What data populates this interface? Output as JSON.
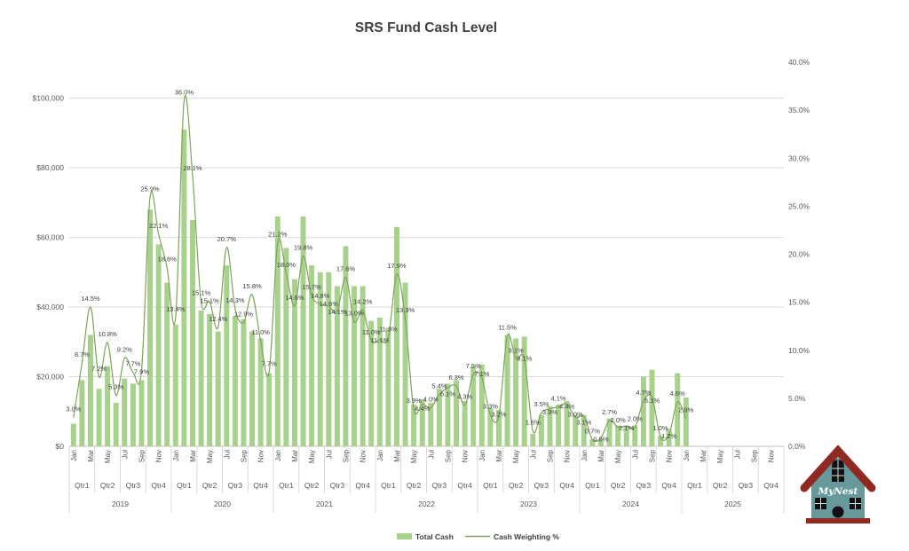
{
  "title": "SRS Fund Cash Level",
  "legend": {
    "total_cash": "Total Cash",
    "cash_weighting": "Cash Weighting %"
  },
  "colors": {
    "bar": "#a9d18e",
    "line": "#7fa35c",
    "grid": "#d9d9d9",
    "axis_line": "#bfbfbf",
    "axis_text": "#595959",
    "label_text": "#404040",
    "title_text": "#404040"
  },
  "logo": {
    "text": "MyNest",
    "body_color": "#67989c",
    "roof_color": "#8e2a22",
    "window_color": "#111111"
  },
  "chart_data": {
    "type": "combo-bar-line",
    "title": "SRS Fund Cash Level",
    "first_month": "2019-01",
    "last_month": "2025-01",
    "years": [
      "2019",
      "2020",
      "2021",
      "2022",
      "2023",
      "2024",
      "2025"
    ],
    "month_tick_labels": [
      "Jan",
      "Mar",
      "May",
      "Jul",
      "Sep",
      "Nov"
    ],
    "quarter_labels": [
      "Qtr1",
      "Qtr2",
      "Qtr3",
      "Qtr4"
    ],
    "left_axis": {
      "tick_labels": [
        "$0",
        "$20,000",
        "$40,000",
        "$60,000",
        "$80,000",
        "$100,000"
      ],
      "tick_values": [
        0,
        20000,
        40000,
        60000,
        80000,
        100000
      ]
    },
    "right_axis": {
      "min": 0,
      "max": 40,
      "step": 5,
      "format": "percent-1dp"
    },
    "series": [
      {
        "name": "Total Cash",
        "type": "bar",
        "axis": "left",
        "values": [
          6500,
          19000,
          32000,
          16500,
          23000,
          12500,
          19500,
          18000,
          19000,
          68000,
          58000,
          47000,
          35000,
          91000,
          65000,
          39000,
          38000,
          33000,
          52000,
          37500,
          36500,
          33000,
          31000,
          21000,
          66000,
          57000,
          48000,
          66000,
          52000,
          50000,
          50000,
          46000,
          57500,
          46000,
          46000,
          36000,
          37000,
          34000,
          63000,
          47000,
          12000,
          13500,
          12500,
          16500,
          18000,
          19000,
          13000,
          23000,
          23500,
          11000,
          10500,
          32000,
          31000,
          31500,
          3600,
          9000,
          11500,
          12000,
          13000,
          9000,
          9000,
          2000,
          2000,
          8000,
          6000,
          6000,
          6000,
          20000,
          22000,
          3000,
          5000,
          21000,
          14000
        ]
      },
      {
        "name": "Cash Weighting %",
        "type": "line",
        "axis": "right",
        "data_labels": true,
        "values": [
          3.0,
          8.7,
          14.5,
          7.2,
          10.8,
          5.3,
          9.2,
          7.7,
          7.9,
          25.9,
          22.1,
          18.6,
          13.4,
          36.0,
          28.1,
          15.1,
          15.1,
          12.4,
          20.7,
          14.3,
          12.9,
          15.8,
          11.0,
          7.7,
          21.2,
          18.0,
          14.6,
          19.8,
          15.7,
          14.8,
          14.6,
          14.1,
          17.6,
          13.0,
          14.2,
          11.0,
          11.1,
          11.3,
          17.9,
          13.3,
          3.9,
          4.4,
          4.0,
          5.4,
          6.1,
          6.3,
          4.3,
          7.5,
          7.1,
          3.3,
          3.2,
          11.5,
          9.1,
          9.1,
          1.6,
          3.5,
          3.9,
          4.1,
          4.4,
          3.0,
          3.1,
          0.7,
          0.9,
          2.7,
          2.0,
          2.1,
          2.0,
          4.7,
          5.1,
          1.0,
          1.2,
          4.6,
          2.9
        ]
      }
    ]
  }
}
